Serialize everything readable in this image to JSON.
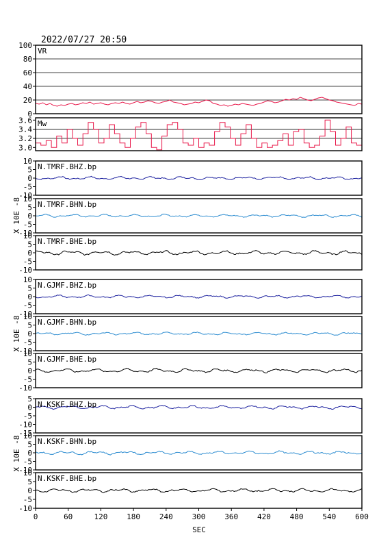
{
  "header": {
    "datetime": "2022/07/27 20:50"
  },
  "chart_data": {
    "type": "line",
    "x": {
      "label": "SEC",
      "range": [
        0,
        600
      ],
      "ticks": [
        0,
        60,
        120,
        180,
        240,
        300,
        360,
        420,
        480,
        540,
        600
      ]
    },
    "y_unit_label": "X 10E -8",
    "panels": [
      {
        "label": "VR",
        "kind": "vr",
        "ylim": [
          0,
          100
        ],
        "yticks": [
          0,
          20,
          40,
          60,
          80,
          100
        ],
        "grid": [
          20,
          40,
          60,
          80
        ],
        "color": "#e8184a",
        "values": [
          15,
          14,
          16,
          13,
          15,
          12,
          11,
          13,
          12,
          14,
          15,
          13,
          14,
          16,
          15,
          17,
          14,
          15,
          16,
          14,
          13,
          15,
          16,
          15,
          17,
          15,
          14,
          16,
          18,
          16,
          17,
          19,
          18,
          16,
          15,
          17,
          18,
          20,
          17,
          16,
          15,
          13,
          14,
          15,
          17,
          16,
          18,
          20,
          19,
          15,
          14,
          12,
          13,
          11,
          12,
          14,
          13,
          15,
          14,
          13,
          12,
          14,
          15,
          17,
          19,
          18,
          16,
          17,
          19,
          21,
          20,
          22,
          21,
          24,
          22,
          20,
          19,
          21,
          23,
          24,
          22,
          20,
          19,
          17,
          16,
          15,
          14,
          13,
          12,
          15,
          14
        ]
      },
      {
        "label": "Mw",
        "kind": "mw",
        "ylim": [
          2.93,
          3.65
        ],
        "yticks": [
          3.0,
          3.2,
          3.4,
          3.6
        ],
        "grid": [
          3.2,
          3.4
        ],
        "color": "#e8184a",
        "values": [
          3.1,
          3.05,
          3.15,
          3.0,
          3.25,
          3.1,
          3.4,
          3.2,
          3.05,
          3.3,
          3.55,
          3.4,
          3.1,
          3.2,
          3.5,
          3.3,
          3.1,
          3.0,
          3.2,
          3.45,
          3.55,
          3.3,
          3.0,
          2.95,
          3.25,
          3.5,
          3.55,
          3.4,
          3.1,
          3.05,
          3.2,
          3.0,
          3.1,
          3.05,
          3.35,
          3.55,
          3.45,
          3.2,
          3.05,
          3.3,
          3.5,
          3.2,
          3.0,
          3.1,
          3.0,
          3.05,
          3.15,
          3.3,
          3.05,
          3.35,
          3.4,
          3.1,
          3.0,
          3.05,
          3.25,
          3.6,
          3.35,
          3.05,
          3.2,
          3.45,
          3.1,
          3.05
        ]
      },
      {
        "label": "N.TMRF.BHZ.bp",
        "kind": "wave",
        "ylim": [
          -10,
          10
        ],
        "yticks": [
          -10,
          -5,
          0,
          5,
          10
        ],
        "color": "#1a1f9e",
        "amp": 0.9
      },
      {
        "label": "N.TMRF.BHN.bp",
        "kind": "wave",
        "ylim": [
          -10,
          10
        ],
        "yticks": [
          -10,
          -5,
          0,
          5,
          10
        ],
        "color": "#2a8bd0",
        "amp": 0.8
      },
      {
        "label": "N.TMRF.BHE.bp",
        "kind": "wave",
        "ylim": [
          -10,
          10
        ],
        "yticks": [
          -10,
          -5,
          0,
          5,
          10
        ],
        "color": "#000000",
        "amp": 1.2
      },
      {
        "label": "N.GJMF.BHZ.bp",
        "kind": "wave",
        "ylim": [
          -10,
          10
        ],
        "yticks": [
          -10,
          -5,
          0,
          5,
          10
        ],
        "color": "#1a1f9e",
        "amp": 0.8
      },
      {
        "label": "N.GJMF.BHN.bp",
        "kind": "wave",
        "ylim": [
          -10,
          10
        ],
        "yticks": [
          -10,
          -5,
          0,
          5,
          10
        ],
        "color": "#2a8bd0",
        "amp": 0.8
      },
      {
        "label": "N.GJMF.BHE.bp",
        "kind": "wave",
        "ylim": [
          -10,
          10
        ],
        "yticks": [
          -10,
          -5,
          0,
          5,
          10
        ],
        "color": "#000000",
        "amp": 1.1
      },
      {
        "label": "N.KSKF.BHZ.bp",
        "kind": "wave",
        "ylim": [
          -15,
          5
        ],
        "yticks": [
          -15,
          -10,
          -5,
          0,
          5
        ],
        "color": "#1a1f9e",
        "amp": 1.0
      },
      {
        "label": "N.KSKF.BHN.bp",
        "kind": "wave",
        "ylim": [
          -10,
          10
        ],
        "yticks": [
          -10,
          -5,
          0,
          5,
          10
        ],
        "color": "#2a8bd0",
        "amp": 1.0
      },
      {
        "label": "N.KSKF.BHE.bp",
        "kind": "wave",
        "ylim": [
          -10,
          10
        ],
        "yticks": [
          -10,
          -5,
          0,
          5,
          10
        ],
        "color": "#000000",
        "amp": 1.0
      }
    ]
  }
}
